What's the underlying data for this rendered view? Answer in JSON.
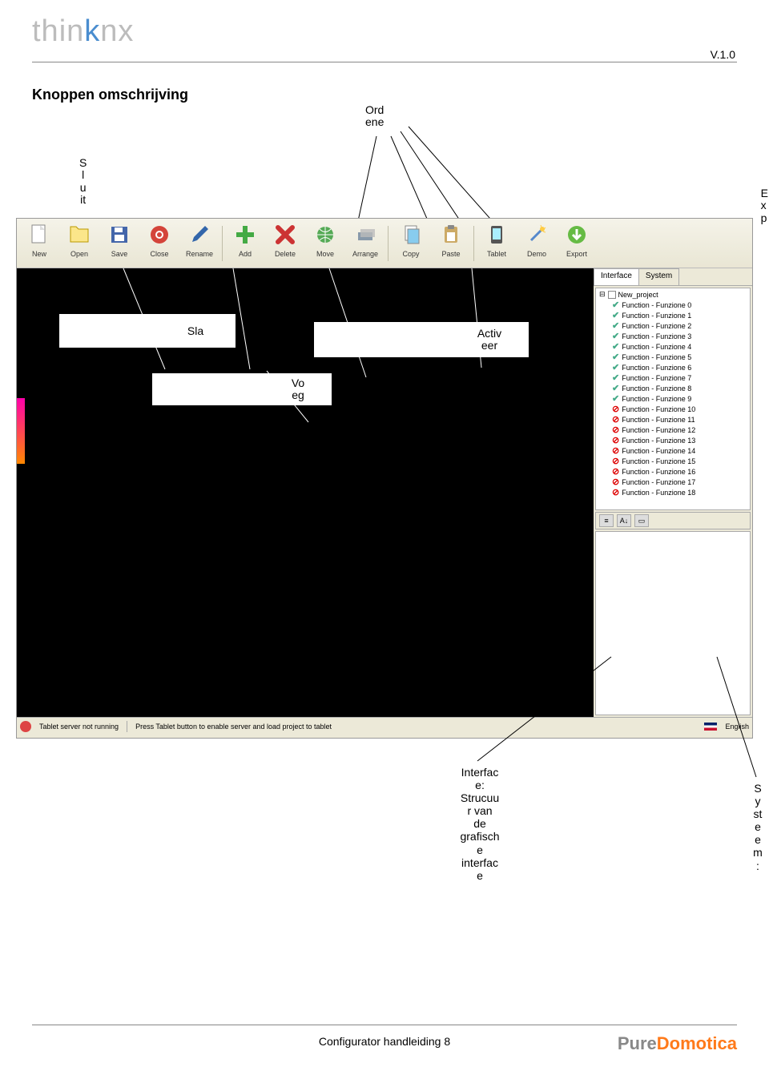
{
  "header": {
    "logo_pre": "thin",
    "logo_k": "k",
    "logo_post": "nx",
    "version": "V.1.0"
  },
  "title": "Knoppen omschrijving",
  "labels": {
    "ordene": "Ord\nene",
    "sluit": "S\nl\nu\nit",
    "exp": "E\nx\np",
    "sla": "Sla",
    "voeg": "Vo\neg",
    "activ": "Activ\neer",
    "interface": "Interfac\ne:\nStrucuu\nr van\nde\ngrafisch\ne\ninterfac\ne",
    "system": "S\ny\nst\ne\ne\nm\n:"
  },
  "toolbar": [
    {
      "label": "New",
      "icon": "new"
    },
    {
      "label": "Open",
      "icon": "open"
    },
    {
      "label": "Save",
      "icon": "save"
    },
    {
      "label": "Close",
      "icon": "close"
    },
    {
      "label": "Rename",
      "icon": "rename"
    },
    {
      "label": "Add",
      "icon": "add"
    },
    {
      "label": "Delete",
      "icon": "delete"
    },
    {
      "label": "Move",
      "icon": "move"
    },
    {
      "label": "Arrange",
      "icon": "arrange"
    },
    {
      "label": "Copy",
      "icon": "copy"
    },
    {
      "label": "Paste",
      "icon": "paste"
    },
    {
      "label": "Tablet",
      "icon": "tablet"
    },
    {
      "label": "Demo",
      "icon": "demo"
    },
    {
      "label": "Export",
      "icon": "export"
    }
  ],
  "toolbar_separators_after": [
    4,
    8,
    10
  ],
  "tabs": {
    "tab1": "Interface",
    "tab2": "System"
  },
  "tree": {
    "root": "New_project",
    "items": [
      {
        "ok": true,
        "label": "Function - Funzione 0"
      },
      {
        "ok": true,
        "label": "Function - Funzione 1"
      },
      {
        "ok": true,
        "label": "Function - Funzione 2"
      },
      {
        "ok": true,
        "label": "Function - Funzione 3"
      },
      {
        "ok": true,
        "label": "Function - Funzione 4"
      },
      {
        "ok": true,
        "label": "Function - Funzione 5"
      },
      {
        "ok": true,
        "label": "Function - Funzione 6"
      },
      {
        "ok": true,
        "label": "Function - Funzione 7"
      },
      {
        "ok": true,
        "label": "Function - Funzione 8"
      },
      {
        "ok": true,
        "label": "Function - Funzione 9"
      },
      {
        "ok": false,
        "label": "Function - Funzione 10"
      },
      {
        "ok": false,
        "label": "Function - Funzione 11"
      },
      {
        "ok": false,
        "label": "Function - Funzione 12"
      },
      {
        "ok": false,
        "label": "Function - Funzione 13"
      },
      {
        "ok": false,
        "label": "Function - Funzione 14"
      },
      {
        "ok": false,
        "label": "Function - Funzione 15"
      },
      {
        "ok": false,
        "label": "Function - Funzione 16"
      },
      {
        "ok": false,
        "label": "Function - Funzione 17"
      },
      {
        "ok": false,
        "label": "Function - Funzione 18"
      }
    ]
  },
  "status": {
    "server": "Tablet server not running",
    "hint": "Press Tablet button to enable server and load project to tablet",
    "lang": "English"
  },
  "footer": {
    "text": "Configurator handleiding 8",
    "logo_pre": "Pure",
    "logo_d": "Domotica"
  },
  "colors": {
    "bg": "#ffffff",
    "panel": "#ece9d8",
    "canvas": "#000000",
    "accent_blue": "#4a8dcf",
    "ok_green": "#44aa88",
    "no_red": "#dd0000",
    "orange": "#ff7a1a"
  },
  "icons": {
    "new": {
      "type": "doc",
      "color": "#fff",
      "border": "#888"
    },
    "open": {
      "type": "folder",
      "color": "#fbe68a"
    },
    "save": {
      "type": "floppy",
      "color": "#4466aa"
    },
    "close": {
      "type": "circle",
      "color": "#d4443a"
    },
    "rename": {
      "type": "pencil",
      "color": "#3366aa"
    },
    "add": {
      "type": "plus",
      "color": "#44aa44"
    },
    "delete": {
      "type": "x",
      "color": "#cc3333"
    },
    "move": {
      "type": "globe",
      "color": "#55aa55"
    },
    "arrange": {
      "type": "layers",
      "color": "#8899aa"
    },
    "copy": {
      "type": "copy",
      "color": "#88ccee"
    },
    "paste": {
      "type": "paste",
      "color": "#ccaa66"
    },
    "tablet": {
      "type": "device",
      "color": "#555"
    },
    "demo": {
      "type": "wand",
      "color": "#5588cc"
    },
    "export": {
      "type": "arrow-down",
      "color": "#66bb44"
    }
  }
}
